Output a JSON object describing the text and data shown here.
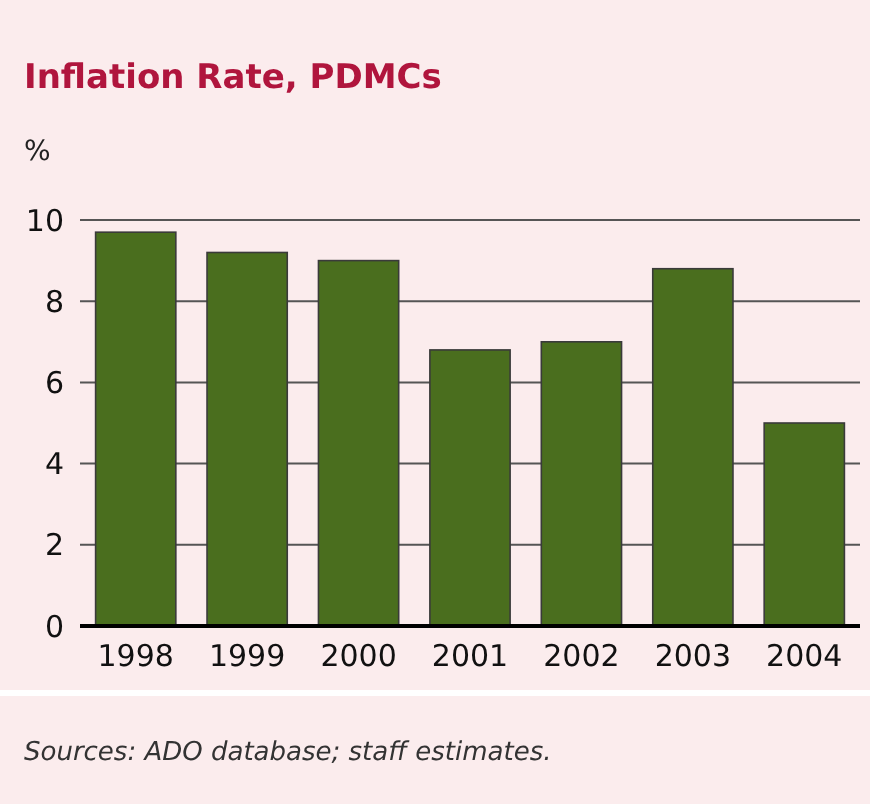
{
  "chart_data": {
    "type": "bar",
    "title": "Inflation Rate, PDMCs",
    "ylabel": "%",
    "categories": [
      "1998",
      "1999",
      "2000",
      "2001",
      "2002",
      "2003",
      "2004"
    ],
    "values": [
      9.7,
      9.2,
      9.0,
      6.8,
      7.0,
      8.8,
      5.0
    ],
    "color": "#4a6e1e",
    "ylim": [
      0,
      10
    ],
    "yticks": [
      0,
      2,
      4,
      6,
      8,
      10
    ],
    "grid": "y",
    "annotations": [
      "Sources: ADO database; staff estimates."
    ]
  }
}
